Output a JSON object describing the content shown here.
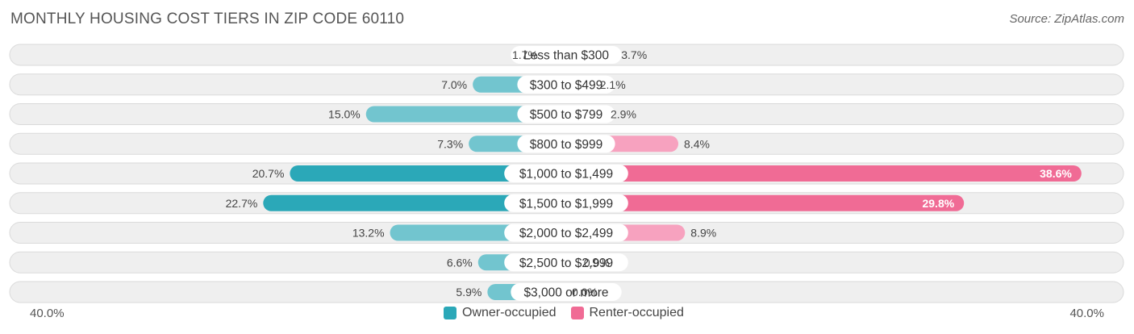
{
  "header": {
    "title": "MONTHLY HOUSING COST TIERS IN ZIP CODE 60110",
    "source": "Source: ZipAtlas.com"
  },
  "axis": {
    "left_label": "40.0%",
    "right_label": "40.0%"
  },
  "colors": {
    "owner_dark": "#2ba8b8",
    "owner_light": "#72c5cf",
    "renter_dark": "#f06b95",
    "renter_light": "#f7a2bf",
    "row_bg": "#efefef",
    "row_border": "#dadada"
  },
  "legend": {
    "owner": "Owner-occupied",
    "renter": "Renter-occupied"
  },
  "chart_data": {
    "type": "bar",
    "orientation": "horizontal-diverging",
    "title": "MONTHLY HOUSING COST TIERS IN ZIP CODE 60110",
    "xlim": [
      0,
      40
    ],
    "categories": [
      "Less than $300",
      "$300 to $499",
      "$500 to $799",
      "$800 to $999",
      "$1,000 to $1,499",
      "$1,500 to $1,999",
      "$2,000 to $2,499",
      "$2,500 to $2,999",
      "$3,000 or more"
    ],
    "series": [
      {
        "name": "Owner-occupied",
        "values": [
          1.7,
          7.0,
          15.0,
          7.3,
          20.7,
          22.7,
          13.2,
          6.6,
          5.9
        ],
        "labels": [
          "1.7%",
          "7.0%",
          "15.0%",
          "7.3%",
          "20.7%",
          "22.7%",
          "13.2%",
          "6.6%",
          "5.9%"
        ]
      },
      {
        "name": "Renter-occupied",
        "values": [
          3.7,
          2.1,
          2.9,
          8.4,
          38.6,
          29.8,
          8.9,
          0.9,
          0.0
        ],
        "labels": [
          "3.7%",
          "2.1%",
          "2.9%",
          "8.4%",
          "38.6%",
          "29.8%",
          "8.9%",
          "0.9%",
          "0.0%"
        ]
      }
    ]
  }
}
